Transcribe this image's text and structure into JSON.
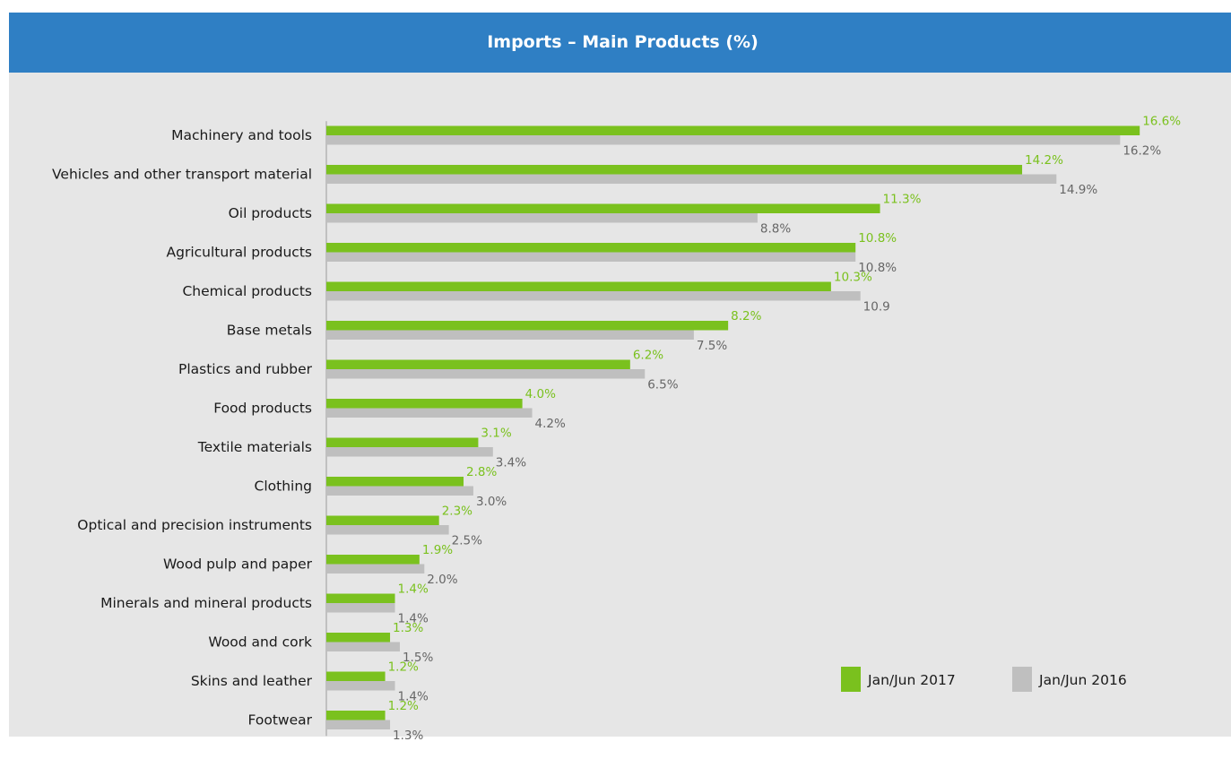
{
  "chart_data": {
    "type": "bar",
    "orientation": "horizontal",
    "title": "Imports – Main Products (%)",
    "categories": [
      "Machinery and tools",
      "Vehicles and other transport material",
      "Oil products",
      "Agricultural products",
      "Chemical products",
      "Base metals",
      "Plastics and rubber",
      "Food products",
      "Textile materials",
      "Clothing",
      "Optical and precision instruments",
      "Wood pulp and paper",
      "Minerals and mineral products",
      "Wood and cork",
      "Skins and leather",
      "Footwear"
    ],
    "series": [
      {
        "name": "Jan/Jun 2017",
        "color": "#7ac11e",
        "values": [
          16.6,
          14.2,
          11.3,
          10.8,
          10.3,
          8.2,
          6.2,
          4.0,
          3.1,
          2.8,
          2.3,
          1.9,
          1.4,
          1.3,
          1.2,
          1.2
        ],
        "labels": [
          "16.6%",
          "14.2%",
          "11.3%",
          "10.8%",
          "10.3%",
          "8.2%",
          "6.2%",
          "4.0%",
          "3.1%",
          "2.8%",
          "2.3%",
          "1.9%",
          "1.4%",
          "1.3%",
          "1.2%",
          "1.2%"
        ]
      },
      {
        "name": "Jan/Jun 2016",
        "color": "#bfbfbf",
        "values": [
          16.2,
          14.9,
          8.8,
          10.8,
          10.9,
          7.5,
          6.5,
          4.2,
          3.4,
          3.0,
          2.5,
          2.0,
          1.4,
          1.5,
          1.4,
          1.3
        ],
        "labels": [
          "16.2%",
          "14.9%",
          "8.8%",
          "10.8%",
          "10.9",
          "7.5%",
          "6.5%",
          "4.2%",
          "3.4%",
          "3.0%",
          "2.5%",
          "2.0%",
          "1.4%",
          "1.5%",
          "1.4%",
          "1.3%"
        ]
      }
    ],
    "xlim": [
      0,
      17
    ],
    "grid": false,
    "legend_position": "bottom-right",
    "background_color": "#e6e6e6",
    "header_color": "#2f7fc4"
  }
}
